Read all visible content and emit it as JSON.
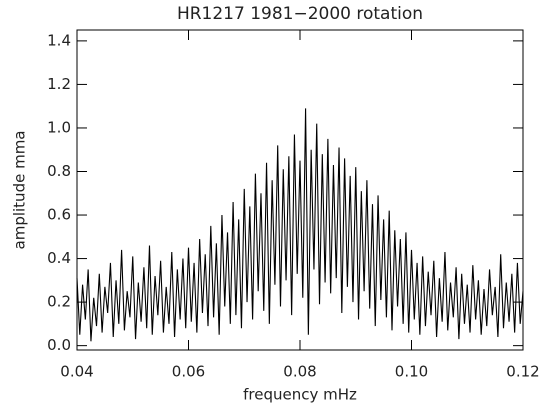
{
  "chart_data": {
    "type": "line",
    "title": "HR1217 1981−2000 rotation",
    "x_label": "frequency mHz",
    "y_label": "amplitude mma",
    "color": "#000000",
    "xlim": [
      0.04,
      0.12
    ],
    "ylim": [
      -0.02,
      1.45
    ],
    "xticks": [
      0.04,
      0.06,
      0.08,
      {
        "value": 0.1,
        "label": "0.10"
      },
      0.12
    ],
    "yticks": [
      {
        "value": 0,
        "label": "0.0"
      },
      0.2,
      0.4,
      0.6,
      0.8,
      {
        "value": 1,
        "label": "1.0"
      },
      1.2,
      1.4
    ],
    "x": [
      0.04,
      0.0405,
      0.041,
      0.0415,
      0.042,
      0.0425,
      0.043,
      0.0435,
      0.044,
      0.0445,
      0.045,
      0.0455,
      0.046,
      0.0465,
      0.047,
      0.0475,
      0.048,
      0.0485,
      0.049,
      0.0495,
      0.05,
      0.0505,
      0.051,
      0.0515,
      0.052,
      0.0525,
      0.053,
      0.0535,
      0.054,
      0.0545,
      0.055,
      0.0555,
      0.056,
      0.0565,
      0.057,
      0.0575,
      0.058,
      0.0585,
      0.059,
      0.0595,
      0.06,
      0.0605,
      0.061,
      0.0615,
      0.062,
      0.0625,
      0.063,
      0.0635,
      0.064,
      0.0645,
      0.065,
      0.0655,
      0.066,
      0.0665,
      0.067,
      0.0675,
      0.068,
      0.0685,
      0.069,
      0.0695,
      0.07,
      0.0705,
      0.071,
      0.0715,
      0.072,
      0.0725,
      0.073,
      0.0735,
      0.074,
      0.0745,
      0.075,
      0.0755,
      0.076,
      0.0765,
      0.077,
      0.0775,
      0.078,
      0.0785,
      0.079,
      0.0795,
      0.08,
      0.0805,
      0.081,
      0.0815,
      0.082,
      0.0825,
      0.083,
      0.0835,
      0.084,
      0.0845,
      0.085,
      0.0855,
      0.086,
      0.0865,
      0.087,
      0.0875,
      0.088,
      0.0885,
      0.089,
      0.0895,
      0.09,
      0.0905,
      0.091,
      0.0915,
      0.092,
      0.0925,
      0.093,
      0.0935,
      0.094,
      0.0945,
      0.095,
      0.0955,
      0.096,
      0.0965,
      0.097,
      0.0975,
      0.098,
      0.0985,
      0.099,
      0.0995,
      0.1,
      0.1005,
      0.101,
      0.1015,
      0.102,
      0.1025,
      0.103,
      0.1035,
      0.104,
      0.1045,
      0.105,
      0.1055,
      0.106,
      0.1065,
      0.107,
      0.1075,
      0.108,
      0.1085,
      0.109,
      0.1095,
      0.11,
      0.1105,
      0.111,
      0.1115,
      0.112,
      0.1125,
      0.113,
      0.1135,
      0.114,
      0.1145,
      0.115,
      0.1155,
      0.116,
      0.1165,
      0.117,
      0.1175,
      0.118,
      0.1185,
      0.119,
      0.1195,
      0.12
    ],
    "values": [
      0.31,
      0.05,
      0.28,
      0.12,
      0.35,
      0.02,
      0.22,
      0.09,
      0.33,
      0.06,
      0.27,
      0.15,
      0.38,
      0.04,
      0.3,
      0.1,
      0.44,
      0.07,
      0.25,
      0.13,
      0.41,
      0.03,
      0.29,
      0.11,
      0.36,
      0.08,
      0.46,
      0.05,
      0.32,
      0.14,
      0.39,
      0.06,
      0.27,
      0.1,
      0.43,
      0.04,
      0.35,
      0.12,
      0.4,
      0.08,
      0.45,
      0.11,
      0.38,
      0.06,
      0.49,
      0.15,
      0.42,
      0.09,
      0.55,
      0.13,
      0.47,
      0.05,
      0.6,
      0.18,
      0.52,
      0.1,
      0.66,
      0.14,
      0.58,
      0.08,
      0.72,
      0.2,
      0.64,
      0.12,
      0.79,
      0.25,
      0.7,
      0.16,
      0.84,
      0.1,
      0.76,
      0.28,
      0.92,
      0.18,
      0.81,
      0.3,
      0.87,
      0.14,
      0.97,
      0.33,
      0.85,
      0.22,
      1.09,
      0.05,
      0.9,
      0.35,
      1.02,
      0.19,
      0.88,
      0.29,
      0.95,
      0.24,
      0.83,
      0.31,
      0.91,
      0.15,
      0.86,
      0.27,
      0.78,
      0.2,
      0.82,
      0.12,
      0.71,
      0.25,
      0.76,
      0.17,
      0.65,
      0.09,
      0.69,
      0.21,
      0.58,
      0.13,
      0.62,
      0.07,
      0.53,
      0.18,
      0.49,
      0.1,
      0.52,
      0.06,
      0.44,
      0.12,
      0.38,
      0.05,
      0.41,
      0.09,
      0.34,
      0.14,
      0.39,
      0.04,
      0.31,
      0.11,
      0.43,
      0.07,
      0.29,
      0.13,
      0.36,
      0.03,
      0.33,
      0.1,
      0.28,
      0.06,
      0.37,
      0.12,
      0.3,
      0.05,
      0.26,
      0.09,
      0.35,
      0.14,
      0.27,
      0.04,
      0.42,
      0.08,
      0.29,
      0.11,
      0.33,
      0.06,
      0.38,
      0.1,
      0.25
    ]
  }
}
